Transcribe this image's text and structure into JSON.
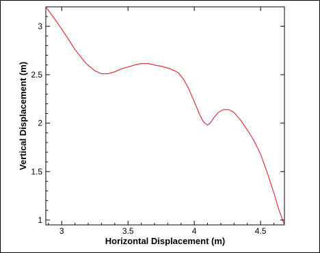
{
  "chart_data": {
    "type": "line",
    "title": "",
    "xlabel": "Horizontal Displacement (m)",
    "ylabel": "Vertical Displacement (m)",
    "xlim": [
      2.88,
      4.68
    ],
    "ylim": [
      0.95,
      3.2
    ],
    "x_ticks": [
      3,
      3.5,
      4,
      4.5
    ],
    "y_ticks": [
      1,
      1.5,
      2,
      2.5,
      3
    ],
    "x_tick_labels": [
      "3",
      "3.5",
      "4",
      "4.5"
    ],
    "y_tick_labels": [
      "1",
      "1.5",
      "2",
      "2.5",
      "3"
    ],
    "grid": false,
    "legend": "none",
    "series": [
      {
        "color": "#e0212a",
        "x": [
          2.88,
          2.95,
          3.02,
          3.1,
          3.18,
          3.25,
          3.3,
          3.35,
          3.4,
          3.45,
          3.5,
          3.55,
          3.6,
          3.65,
          3.7,
          3.76,
          3.82,
          3.88,
          3.92,
          3.96,
          4.0,
          4.04,
          4.07,
          4.1,
          4.12,
          4.15,
          4.18,
          4.22,
          4.26,
          4.3,
          4.35,
          4.4,
          4.45,
          4.5,
          4.55,
          4.6,
          4.64,
          4.68
        ],
        "y": [
          3.2,
          3.07,
          2.93,
          2.76,
          2.62,
          2.54,
          2.51,
          2.51,
          2.53,
          2.56,
          2.58,
          2.6,
          2.615,
          2.615,
          2.6,
          2.585,
          2.56,
          2.52,
          2.45,
          2.35,
          2.22,
          2.09,
          2.01,
          1.98,
          2.0,
          2.06,
          2.11,
          2.14,
          2.14,
          2.11,
          2.03,
          1.93,
          1.82,
          1.68,
          1.49,
          1.28,
          1.1,
          0.95
        ]
      }
    ]
  }
}
